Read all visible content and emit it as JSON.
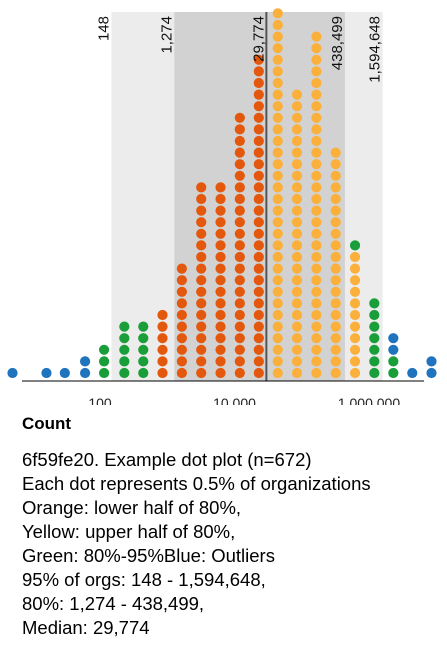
{
  "chart_data": {
    "type": "dot-plot",
    "x_scale": "log",
    "x_range": [
      3.3,
      1000000000
    ],
    "x_ticks": [
      {
        "value": 100,
        "label": "100"
      },
      {
        "value": 10000,
        "label": "10,000"
      },
      {
        "value": 1000000,
        "label": "1,000,000"
      }
    ],
    "xlabel": "Count",
    "reference_lines": [
      {
        "value": 148,
        "label": "148"
      },
      {
        "value": 1274,
        "label": "1,274"
      },
      {
        "value": 29774,
        "label": "29,774"
      },
      {
        "value": 438499,
        "label": "438,499"
      },
      {
        "value": 1594648,
        "label": "1,594,648"
      }
    ],
    "median": 29774,
    "band_95": [
      148,
      1594648
    ],
    "band_80": [
      1274,
      438499
    ],
    "colors": {
      "orange": "#e3580d",
      "yellow": "#fbb03b",
      "green": "#1a9e3a",
      "blue": "#1f74bd",
      "band_95": "#ececec",
      "band_80": "#d2d2d2",
      "median_line": "#555555"
    },
    "columns": [
      {
        "x": 5,
        "blue": 1
      },
      {
        "x": 16,
        "blue": 1
      },
      {
        "x": 30,
        "blue": 1
      },
      {
        "x": 60,
        "blue": 2
      },
      {
        "x": 115,
        "green": 3
      },
      {
        "x": 230,
        "green": 5
      },
      {
        "x": 440,
        "green": 5
      },
      {
        "x": 850,
        "orange": 6
      },
      {
        "x": 1650,
        "orange": 10
      },
      {
        "x": 3200,
        "orange": 17
      },
      {
        "x": 6200,
        "orange": 17
      },
      {
        "x": 12000,
        "orange": 23
      },
      {
        "x": 23000,
        "orange": 28
      },
      {
        "x": 44000,
        "yellow": 32
      },
      {
        "x": 85000,
        "yellow": 25
      },
      {
        "x": 165000,
        "yellow": 30
      },
      {
        "x": 320000,
        "yellow": 20
      },
      {
        "x": 620000,
        "yellow": 11,
        "green": 1
      },
      {
        "x": 1200000,
        "green": 7
      },
      {
        "x": 2300000,
        "green": 2,
        "blue": 2
      },
      {
        "x": 4400000,
        "blue": 1
      },
      {
        "x": 8500000,
        "blue": 2
      }
    ]
  },
  "count_title": "Count",
  "caption": [
    "6f59fe20. Example dot plot (n=672)",
    "Each dot represents 0.5% of organizations",
    "Orange: lower half of 80%,",
    "Yellow: upper half of 80%,",
    "Green: 80%-95%Blue: Outliers",
    "95% of orgs: 148 - 1,594,648,",
    "80%: 1,274 - 438,499,",
    "Median: 29,774"
  ]
}
